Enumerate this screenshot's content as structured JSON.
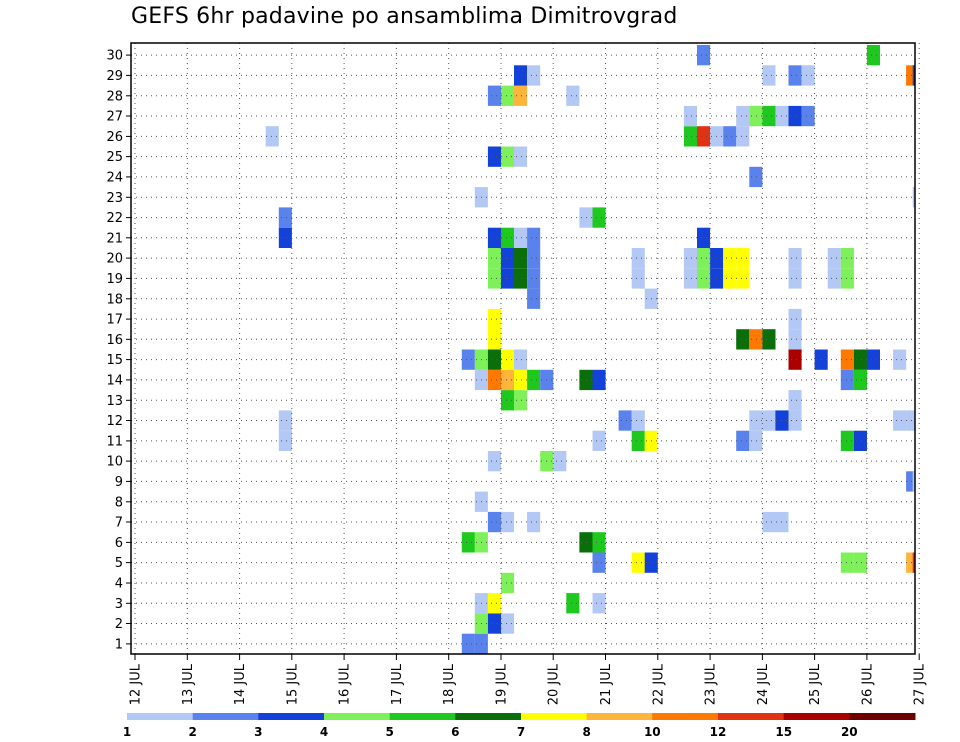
{
  "chart_data": {
    "type": "heatmap",
    "title": "GEFS 6hr padavine po ansamblima Dimitrovgrad",
    "x_tick_labels": [
      "12 JUL",
      "13 JUL",
      "14 JUL",
      "15 JUL",
      "16 JUL",
      "17 JUL",
      "18 JUL",
      "19 JUL",
      "20 JUL",
      "21 JUL",
      "22 JUL",
      "23 JUL",
      "24 JUL",
      "25 JUL",
      "26 JUL",
      "27 JUL"
    ],
    "y_tick_labels": [
      "1",
      "2",
      "3",
      "4",
      "5",
      "6",
      "7",
      "8",
      "9",
      "10",
      "11",
      "12",
      "13",
      "14",
      "15",
      "16",
      "17",
      "18",
      "19",
      "20",
      "21",
      "22",
      "23",
      "24",
      "25",
      "26",
      "27",
      "28",
      "29",
      "30"
    ],
    "x_unit_note": "6-hour steps counted from 12 JUL 00z; 4 steps per day",
    "xlim": [
      0,
      60
    ],
    "ylim": [
      0.5,
      30.5
    ],
    "grid": "dotted",
    "legend": {
      "placement": "bottom",
      "labels": [
        "1",
        "2",
        "3",
        "4",
        "5",
        "6",
        "7",
        "8",
        "10",
        "12",
        "15",
        "20"
      ],
      "colors": [
        "#b4c8f5",
        "#5a82ec",
        "#1441d7",
        "#7ef05a",
        "#1ec81e",
        "#0a6e0a",
        "#ffff00",
        "#ffb43c",
        "#ff7800",
        "#e13214",
        "#aa0000",
        "#6e0000"
      ]
    },
    "cells": [
      [
        1,
        25.5,
        2
      ],
      [
        1,
        26.5,
        2
      ],
      [
        2,
        26.5,
        4
      ],
      [
        2,
        27.5,
        3
      ],
      [
        2,
        28.5,
        1
      ],
      [
        3,
        26.5,
        1
      ],
      [
        3,
        27.5,
        7
      ],
      [
        3,
        33.5,
        5
      ],
      [
        3,
        35.5,
        1
      ],
      [
        4,
        28.5,
        4
      ],
      [
        5,
        35.5,
        2
      ],
      [
        5,
        38.5,
        7
      ],
      [
        5,
        39.5,
        3
      ],
      [
        5,
        54.5,
        4
      ],
      [
        5,
        55.5,
        4
      ],
      [
        5,
        59.5,
        8
      ],
      [
        5,
        60,
        12
      ],
      [
        6,
        25.5,
        5
      ],
      [
        6,
        26.5,
        4
      ],
      [
        6,
        34.5,
        6
      ],
      [
        6,
        35.5,
        5
      ],
      [
        7,
        27.5,
        2
      ],
      [
        7,
        28.5,
        1
      ],
      [
        7,
        30.5,
        1
      ],
      [
        7,
        48.5,
        1
      ],
      [
        7,
        49.5,
        1
      ],
      [
        8,
        26.5,
        1
      ],
      [
        9,
        59.5,
        2
      ],
      [
        9,
        60,
        1
      ],
      [
        10,
        27.5,
        1
      ],
      [
        10,
        31.5,
        4
      ],
      [
        10,
        32.5,
        1
      ],
      [
        11,
        11.5,
        1
      ],
      [
        11,
        35.5,
        1
      ],
      [
        11,
        38.5,
        5
      ],
      [
        11,
        39.5,
        7
      ],
      [
        11,
        46.5,
        2
      ],
      [
        11,
        47.5,
        1
      ],
      [
        11,
        54.5,
        5
      ],
      [
        11,
        55.5,
        3
      ],
      [
        12,
        11.5,
        1
      ],
      [
        12,
        37.5,
        2
      ],
      [
        12,
        38.5,
        1
      ],
      [
        12,
        47.5,
        1
      ],
      [
        12,
        48.5,
        1
      ],
      [
        12,
        49.5,
        3
      ],
      [
        12,
        50.5,
        1
      ],
      [
        12,
        58.5,
        1
      ],
      [
        12,
        59.5,
        1
      ],
      [
        13,
        28.5,
        5
      ],
      [
        13,
        29.5,
        4
      ],
      [
        13,
        50.5,
        1
      ],
      [
        14,
        26.5,
        1
      ],
      [
        14,
        27.5,
        11
      ],
      [
        14,
        28.5,
        9
      ],
      [
        14,
        29.5,
        7
      ],
      [
        14,
        30.5,
        5
      ],
      [
        14,
        31.5,
        2
      ],
      [
        14,
        34.5,
        6
      ],
      [
        14,
        35.5,
        3
      ],
      [
        14,
        54.5,
        2
      ],
      [
        14,
        55.5,
        5
      ],
      [
        15,
        25.5,
        2
      ],
      [
        15,
        26.5,
        4
      ],
      [
        15,
        27.5,
        6
      ],
      [
        15,
        28.5,
        7
      ],
      [
        15,
        29.5,
        1
      ],
      [
        15,
        50.5,
        15
      ],
      [
        15,
        52.5,
        3
      ],
      [
        15,
        54.5,
        11
      ],
      [
        15,
        55.5,
        6
      ],
      [
        15,
        56.5,
        3
      ],
      [
        15,
        58.5,
        1
      ],
      [
        16,
        27.5,
        7
      ],
      [
        16,
        46.5,
        6
      ],
      [
        16,
        47.5,
        10
      ],
      [
        16,
        48.5,
        6
      ],
      [
        16,
        50.5,
        1
      ],
      [
        17,
        27.5,
        7
      ],
      [
        17,
        50.5,
        1
      ],
      [
        18,
        30.5,
        2
      ],
      [
        18,
        39.5,
        1
      ],
      [
        19,
        27.5,
        4
      ],
      [
        19,
        28.5,
        3
      ],
      [
        19,
        29.5,
        6
      ],
      [
        19,
        30.5,
        2
      ],
      [
        19,
        38.5,
        1
      ],
      [
        19,
        42.5,
        1
      ],
      [
        19,
        43.5,
        4
      ],
      [
        19,
        44.5,
        3
      ],
      [
        19,
        45.5,
        7
      ],
      [
        19,
        46.5,
        7
      ],
      [
        19,
        50.5,
        1
      ],
      [
        19,
        53.5,
        1
      ],
      [
        19,
        54.5,
        4
      ],
      [
        20,
        27.5,
        4
      ],
      [
        20,
        28.5,
        3
      ],
      [
        20,
        29.5,
        6
      ],
      [
        20,
        30.5,
        2
      ],
      [
        20,
        38.5,
        1
      ],
      [
        20,
        42.5,
        1
      ],
      [
        20,
        43.5,
        4
      ],
      [
        20,
        44.5,
        3
      ],
      [
        20,
        45.5,
        7
      ],
      [
        20,
        46.5,
        7
      ],
      [
        20,
        50.5,
        1
      ],
      [
        20,
        53.5,
        1
      ],
      [
        20,
        54.5,
        4
      ],
      [
        21,
        11.5,
        3
      ],
      [
        21,
        27.5,
        3
      ],
      [
        21,
        28.5,
        5
      ],
      [
        21,
        29.5,
        1
      ],
      [
        21,
        30.5,
        2
      ],
      [
        21,
        43.5,
        3
      ],
      [
        22,
        11.5,
        2
      ],
      [
        22,
        34.5,
        1
      ],
      [
        22,
        35.5,
        5
      ],
      [
        23,
        26.5,
        1
      ],
      [
        23,
        60,
        1
      ],
      [
        24,
        47.5,
        2
      ],
      [
        25,
        27.5,
        3
      ],
      [
        25,
        28.5,
        4
      ],
      [
        25,
        29.5,
        1
      ],
      [
        26,
        10.5,
        1
      ],
      [
        26,
        42.5,
        5
      ],
      [
        26,
        43.5,
        12
      ],
      [
        26,
        44.5,
        1
      ],
      [
        26,
        45.5,
        2
      ],
      [
        26,
        46.5,
        1
      ],
      [
        27,
        42.5,
        1
      ],
      [
        27,
        46.5,
        1
      ],
      [
        27,
        47.5,
        4
      ],
      [
        27,
        48.5,
        5
      ],
      [
        27,
        49.5,
        1
      ],
      [
        27,
        50.5,
        3
      ],
      [
        27,
        51.5,
        2
      ],
      [
        28,
        27.5,
        2
      ],
      [
        28,
        28.5,
        4
      ],
      [
        28,
        29.5,
        8
      ],
      [
        28,
        33.5,
        1
      ],
      [
        29,
        29.5,
        3
      ],
      [
        29,
        30.5,
        1
      ],
      [
        29,
        48.5,
        1
      ],
      [
        29,
        50.5,
        2
      ],
      [
        29,
        51.5,
        1
      ],
      [
        29,
        59.5,
        11
      ],
      [
        29,
        60,
        3
      ],
      [
        30,
        43.5,
        2
      ],
      [
        30,
        56.5,
        5
      ]
    ]
  }
}
